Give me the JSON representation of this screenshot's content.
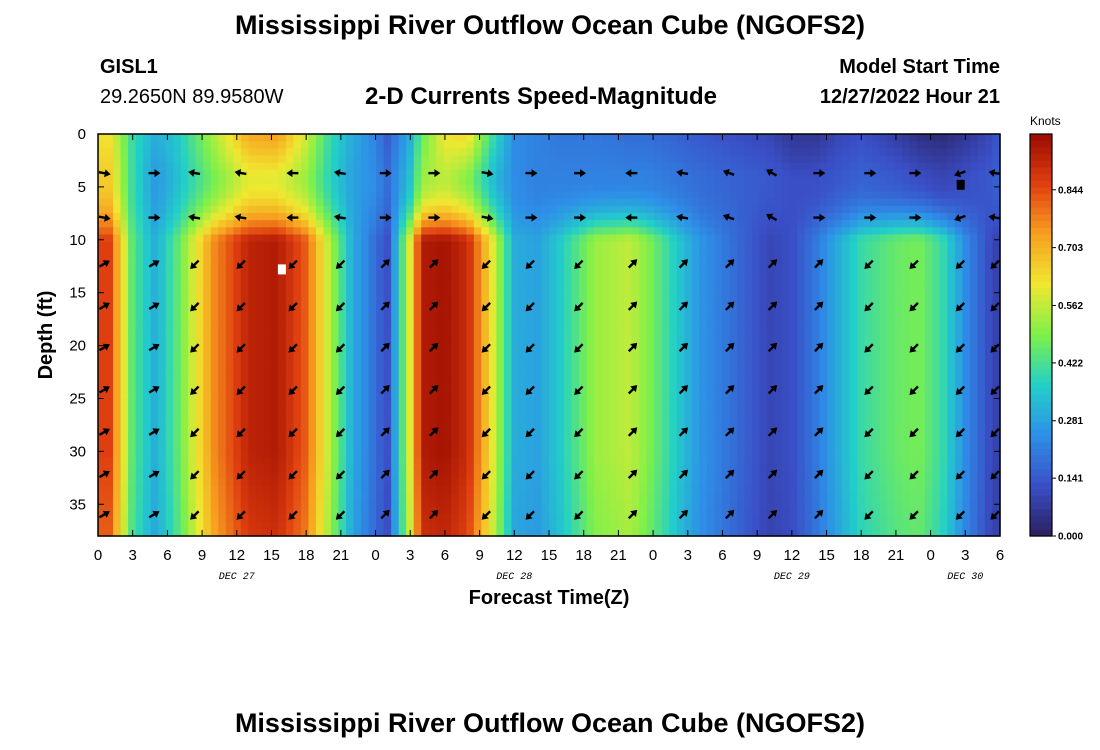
{
  "header": {
    "title": "Mississippi River Outflow Ocean Cube (NGOFS2)",
    "station": "GISL1",
    "coords": "29.2650N  89.9580W",
    "subtitle": "2-D Currents Speed-Magnitude",
    "start_label": "Model Start Time",
    "start_time": "12/27/2022 Hour 21"
  },
  "footer": {
    "title": "Mississippi River Outflow Ocean Cube (NGOFS2)"
  },
  "chart_data": {
    "type": "heatmap",
    "title": "2-D Currents Speed-Magnitude",
    "xlabel": "Forecast Time(Z)",
    "ylabel": "Depth (ft)",
    "units": "Knots",
    "x_range_hours": [
      0,
      78
    ],
    "x_ticks": [
      "0",
      "3",
      "6",
      "9",
      "12",
      "15",
      "18",
      "21",
      "0",
      "3",
      "6",
      "9",
      "12",
      "15",
      "18",
      "21",
      "0",
      "3",
      "6",
      "9",
      "12",
      "15",
      "18",
      "21",
      "0",
      "3",
      "6"
    ],
    "day_labels": [
      {
        "label": "DEC 27",
        "hour": 12
      },
      {
        "label": "DEC 28",
        "hour": 36
      },
      {
        "label": "DEC 29",
        "hour": 60
      },
      {
        "label": "DEC 30",
        "hour": 75
      }
    ],
    "y_range_ft": [
      0,
      38
    ],
    "y_ticks": [
      0,
      5,
      10,
      15,
      20,
      25,
      30,
      35
    ],
    "colorbar": {
      "min": 0.0,
      "max": 0.98,
      "tick_labels": [
        "0.000",
        "0.141",
        "0.281",
        "0.422",
        "0.562",
        "0.703",
        "0.844"
      ],
      "colors": [
        "#2a1f5e",
        "#3a4fc7",
        "#2e8fe8",
        "#22d0c8",
        "#7ef04a",
        "#f0e830",
        "#f7a020",
        "#e04010",
        "#9a0a00"
      ]
    },
    "speed_profile": {
      "hours": [
        0,
        1,
        3,
        5,
        7,
        10,
        13,
        15.5,
        18,
        20,
        22,
        24,
        25,
        27,
        28,
        30,
        32,
        34,
        36,
        38,
        40,
        43,
        46,
        47.5,
        50,
        52,
        55,
        58,
        60,
        62,
        64,
        66,
        69,
        71,
        73,
        75,
        77,
        78
      ],
      "surface_0_4ft": [
        0.62,
        0.62,
        0.4,
        0.3,
        0.36,
        0.54,
        0.72,
        0.74,
        0.58,
        0.4,
        0.3,
        0.22,
        0.15,
        0.3,
        0.46,
        0.62,
        0.64,
        0.42,
        0.24,
        0.22,
        0.2,
        0.2,
        0.18,
        0.18,
        0.16,
        0.14,
        0.12,
        0.1,
        0.06,
        0.06,
        0.1,
        0.12,
        0.08,
        0.04,
        0.03,
        0.06,
        0.1,
        0.14
      ],
      "mid_4_10ft": [
        0.66,
        0.66,
        0.4,
        0.26,
        0.34,
        0.48,
        0.6,
        0.6,
        0.52,
        0.38,
        0.28,
        0.24,
        0.18,
        0.34,
        0.52,
        0.56,
        0.5,
        0.34,
        0.24,
        0.22,
        0.22,
        0.22,
        0.22,
        0.22,
        0.2,
        0.18,
        0.16,
        0.14,
        0.12,
        0.12,
        0.14,
        0.16,
        0.14,
        0.12,
        0.1,
        0.12,
        0.14,
        0.16
      ],
      "deep_10_38ft": [
        0.86,
        0.86,
        0.44,
        0.3,
        0.46,
        0.76,
        0.92,
        0.94,
        0.82,
        0.55,
        0.3,
        0.18,
        0.12,
        0.6,
        0.94,
        0.96,
        0.9,
        0.62,
        0.3,
        0.28,
        0.36,
        0.52,
        0.56,
        0.5,
        0.36,
        0.26,
        0.18,
        0.1,
        0.12,
        0.2,
        0.3,
        0.4,
        0.46,
        0.48,
        0.4,
        0.24,
        0.12,
        0.08
      ]
    },
    "arrow_hours": [
      0.5,
      4.8,
      8.4,
      12.4,
      16.9,
      21.0,
      24.8,
      29.0,
      33.6,
      37.4,
      41.6,
      46.2,
      50.6,
      54.6,
      58.3,
      62.3,
      66.7,
      70.6,
      74.6,
      77.6
    ],
    "arrow_depths_ft": [
      3.7,
      7.9,
      12.3,
      16.3,
      20.2,
      24.2,
      28.2,
      32.2,
      36.0
    ],
    "arrow_directions_deg": {
      "surface": [
        10,
        0,
        190,
        190,
        180,
        190,
        0,
        0,
        10,
        0,
        0,
        180,
        190,
        200,
        210,
        0,
        0,
        0,
        160,
        190
      ],
      "lower": [
        330,
        330,
        135,
        135,
        135,
        135,
        315,
        315,
        135,
        135,
        135,
        315,
        315,
        315,
        315,
        315,
        135,
        135,
        135,
        135
      ]
    },
    "markers": [
      {
        "hour": 15.9,
        "depth_ft": 12.8,
        "color": "#ffffff"
      },
      {
        "hour": 74.6,
        "depth_ft": 4.8,
        "color": "#000000"
      }
    ]
  }
}
